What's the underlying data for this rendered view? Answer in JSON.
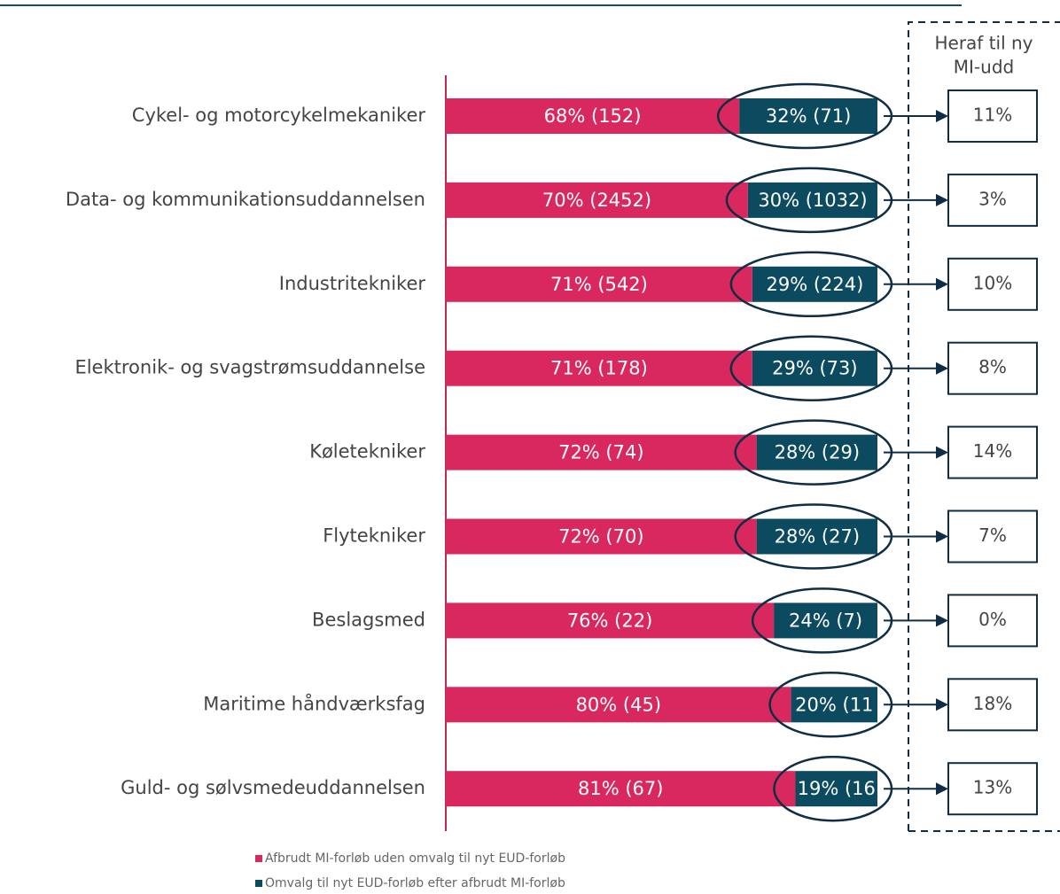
{
  "chart_data": {
    "type": "bar",
    "orientation": "horizontal",
    "stacked": true,
    "categories": [
      "Cykel- og motorcykelmekaniker",
      "Data- og kommunikationsuddannelsen",
      "Industritekniker",
      "Elektronik- og svagstrømsuddannelse",
      "Køletekniker",
      "Flytekniker",
      "Beslagsmed",
      "Maritime håndværksfag",
      "Guld- og sølvsmedeuddannelsen"
    ],
    "series": [
      {
        "name": "Afbrudt MI-forløb uden omvalg til nyt EUD-forløb",
        "color": "#d9285d",
        "values": [
          68,
          70,
          71,
          71,
          72,
          72,
          76,
          80,
          81
        ],
        "value_labels": [
          "68% (152)",
          "70% (2452)",
          "71% (542)",
          "71% (178)",
          "72% (74)",
          "72% (70)",
          "76% (22)",
          "80% (45)",
          "81% (67)"
        ]
      },
      {
        "name": "Omvalg til nyt EUD-forløb efter afbrudt MI-forløb",
        "color": "#0b4a5f",
        "values": [
          32,
          30,
          29,
          29,
          28,
          28,
          24,
          20,
          19
        ],
        "value_labels": [
          "32% (71)",
          "30% (1032)",
          "29% (224)",
          "29% (73)",
          "28% (29)",
          "28% (27)",
          "24% (7)",
          "20% (11",
          "19% (16"
        ]
      }
    ],
    "xlim": [
      0,
      100
    ],
    "side_title": [
      "Heraf til ny",
      "MI-udd"
    ],
    "side_values": [
      11,
      3,
      10,
      8,
      14,
      7,
      0,
      18,
      13
    ],
    "side_value_labels": [
      "11%",
      "3%",
      "10%",
      "8%",
      "14%",
      "7%",
      "0%",
      "18%",
      "13%"
    ]
  }
}
